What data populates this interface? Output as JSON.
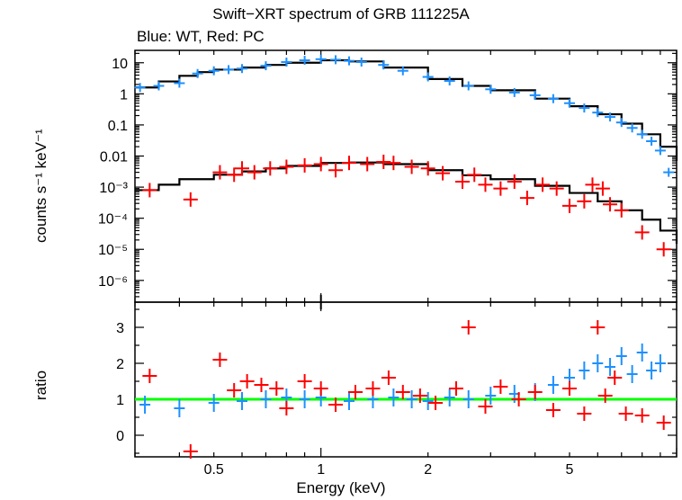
{
  "chart_data": [
    {
      "type": "scatter",
      "panel": "spectrum",
      "title": "Swift−XRT spectrum of GRB 111225A",
      "subtitle": "Blue: WT, Red: PC",
      "xlabel": "Energy (keV)",
      "ylabel": "counts s⁻¹ keV⁻¹",
      "xscale": "log",
      "yscale": "log",
      "xlim": [
        0.3,
        10
      ],
      "ylim": [
        2e-07,
        25
      ],
      "ytick_labels": [
        "10",
        "1",
        "0.1",
        "0.01",
        "10⁻³",
        "10⁻⁴",
        "10⁻⁵",
        "10⁻⁶"
      ],
      "ytick_values": [
        10,
        1,
        0.1,
        0.01,
        0.001,
        0.0001,
        1e-05,
        1e-06
      ],
      "series": [
        {
          "name": "WT",
          "color": "#1e90ff",
          "x": [
            0.31,
            0.35,
            0.4,
            0.45,
            0.5,
            0.55,
            0.6,
            0.7,
            0.8,
            0.9,
            1.0,
            1.1,
            1.2,
            1.3,
            1.5,
            1.7,
            2.0,
            2.3,
            2.6,
            3.0,
            3.5,
            4.0,
            4.5,
            5.0,
            5.5,
            6.0,
            6.5,
            7.0,
            7.5,
            8.0,
            8.5,
            9.0,
            9.5
          ],
          "y": [
            1.6,
            1.8,
            2.2,
            4.5,
            5.5,
            6.0,
            6.5,
            8.0,
            10.5,
            12.0,
            13.0,
            12.5,
            11.5,
            10.5,
            8.5,
            5.5,
            3.5,
            2.6,
            1.8,
            1.4,
            1.1,
            0.9,
            0.7,
            0.5,
            0.35,
            0.25,
            0.18,
            0.12,
            0.08,
            0.05,
            0.03,
            0.015,
            0.003
          ]
        },
        {
          "name": "PC",
          "color": "#ff0000",
          "x": [
            0.33,
            0.43,
            0.52,
            0.57,
            0.6,
            0.65,
            0.72,
            0.8,
            0.9,
            1.0,
            1.1,
            1.2,
            1.35,
            1.5,
            1.6,
            1.8,
            2.0,
            2.2,
            2.5,
            2.7,
            2.9,
            3.2,
            3.5,
            3.8,
            4.2,
            4.6,
            5.0,
            5.5,
            5.8,
            6.2,
            6.5,
            7.0,
            8.0,
            9.2
          ],
          "y": [
            0.0008,
            0.0004,
            0.003,
            0.0025,
            0.004,
            0.003,
            0.004,
            0.0045,
            0.005,
            0.0055,
            0.0035,
            0.006,
            0.0055,
            0.0065,
            0.006,
            0.0045,
            0.004,
            0.0028,
            0.0015,
            0.0025,
            0.0012,
            0.0009,
            0.0015,
            0.00045,
            0.0012,
            0.0009,
            0.00025,
            0.00035,
            0.0012,
            0.0009,
            0.00028,
            0.00018,
            3.5e-05,
            1e-05
          ]
        }
      ],
      "model_series": [
        {
          "name": "WT model",
          "color": "#000000",
          "x": [
            0.3,
            0.35,
            0.4,
            0.45,
            0.5,
            0.6,
            0.7,
            0.8,
            1.0,
            1.2,
            1.5,
            2.0,
            2.5,
            3.0,
            4.0,
            5.0,
            6.0,
            7.0,
            8.0,
            9.0,
            10.0
          ],
          "y": [
            1.6,
            2.5,
            3.8,
            5.0,
            6.0,
            7.0,
            8.5,
            10.0,
            12.0,
            11.0,
            7.0,
            3.0,
            1.8,
            1.3,
            0.7,
            0.4,
            0.22,
            0.11,
            0.05,
            0.02,
            0.007
          ]
        },
        {
          "name": "PC model",
          "color": "#000000",
          "x": [
            0.3,
            0.35,
            0.4,
            0.5,
            0.6,
            0.7,
            0.8,
            1.0,
            1.2,
            1.5,
            2.0,
            2.5,
            3.0,
            4.0,
            5.0,
            6.0,
            7.0,
            8.0,
            9.0,
            10.0
          ],
          "y": [
            0.0008,
            0.0012,
            0.0018,
            0.0025,
            0.0032,
            0.004,
            0.0048,
            0.006,
            0.0062,
            0.0055,
            0.0035,
            0.0024,
            0.0018,
            0.0011,
            0.00065,
            0.00035,
            0.00018,
            9e-05,
            4e-05,
            1.5e-05
          ]
        }
      ]
    },
    {
      "type": "scatter",
      "panel": "ratio",
      "xlabel": "Energy (keV)",
      "ylabel": "ratio",
      "xscale": "log",
      "xlim": [
        0.3,
        10
      ],
      "ylim": [
        -0.6,
        3.7
      ],
      "xtick_labels": [
        "0.5",
        "1",
        "2",
        "5"
      ],
      "xtick_values": [
        0.5,
        1,
        2,
        5
      ],
      "ytick_labels": [
        "0",
        "1",
        "2",
        "3"
      ],
      "ytick_values": [
        0,
        1,
        2,
        3
      ],
      "reference_line": {
        "y": 1,
        "color": "#00ff00"
      },
      "series": [
        {
          "name": "WT",
          "color": "#1e90ff",
          "x": [
            0.32,
            0.4,
            0.5,
            0.6,
            0.7,
            0.8,
            0.9,
            1.0,
            1.2,
            1.4,
            1.6,
            1.8,
            2.0,
            2.3,
            2.6,
            3.0,
            3.5,
            4.0,
            4.5,
            5.0,
            5.5,
            6.0,
            6.5,
            7.0,
            7.5,
            8.0,
            8.5,
            9.0
          ],
          "y": [
            0.85,
            0.75,
            0.9,
            0.95,
            1.0,
            1.05,
            1.0,
            1.05,
            0.95,
            1.0,
            1.05,
            1.0,
            0.95,
            1.05,
            1.0,
            1.1,
            1.15,
            1.2,
            1.4,
            1.6,
            1.8,
            2.0,
            1.9,
            2.2,
            1.7,
            2.3,
            1.8,
            2.0
          ]
        },
        {
          "name": "PC",
          "color": "#ff0000",
          "x": [
            0.33,
            0.43,
            0.52,
            0.57,
            0.62,
            0.68,
            0.75,
            0.8,
            0.9,
            1.0,
            1.1,
            1.25,
            1.4,
            1.55,
            1.7,
            1.9,
            2.1,
            2.4,
            2.6,
            2.9,
            3.2,
            3.6,
            4.0,
            4.5,
            5.0,
            5.5,
            6.0,
            6.3,
            6.7,
            7.2,
            8.0,
            9.2
          ],
          "y": [
            1.65,
            -0.45,
            2.1,
            1.25,
            1.5,
            1.4,
            1.3,
            0.75,
            1.5,
            1.3,
            0.85,
            1.2,
            1.3,
            1.6,
            1.2,
            1.1,
            0.9,
            1.3,
            3.0,
            0.8,
            1.35,
            1.0,
            1.2,
            0.7,
            1.3,
            0.6,
            3.0,
            1.1,
            1.6,
            0.6,
            0.55,
            0.35
          ]
        }
      ]
    }
  ]
}
